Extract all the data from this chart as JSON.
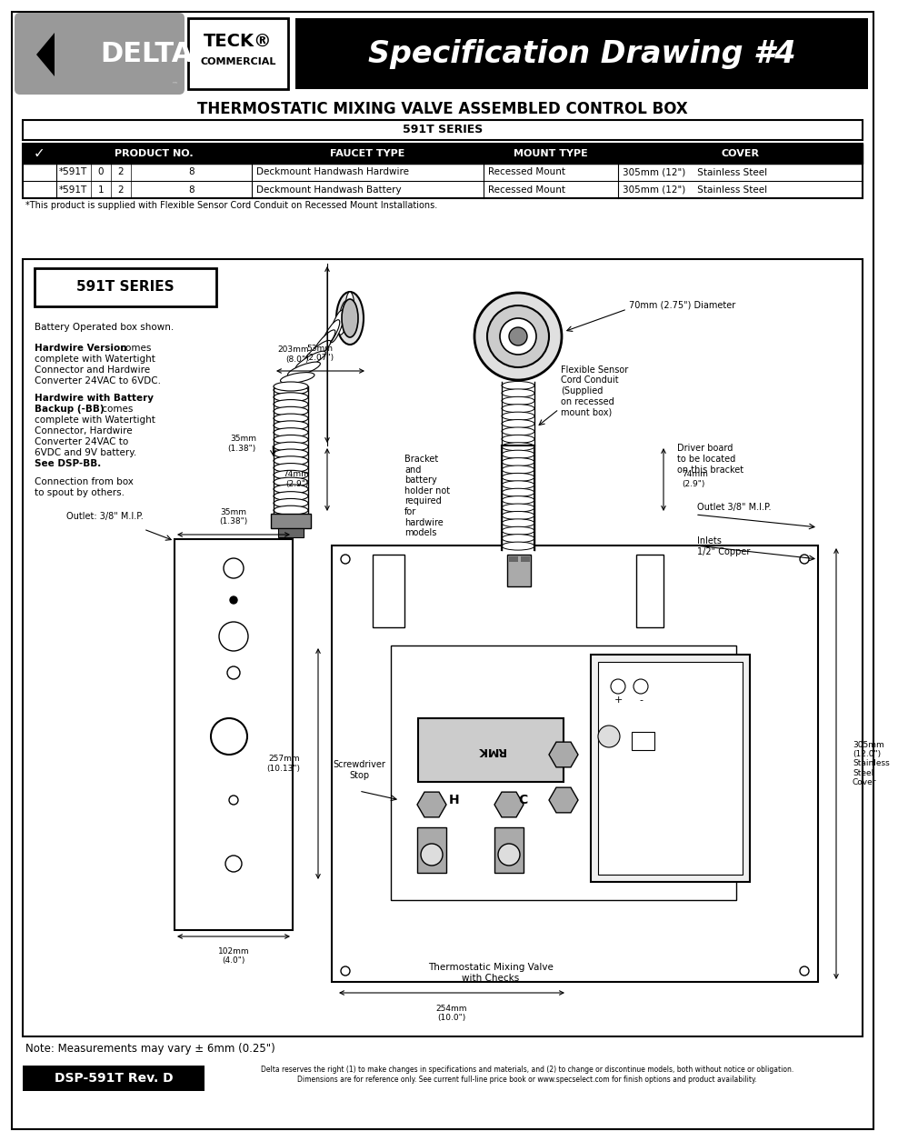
{
  "bg_color": "#ffffff",
  "title_text": "THERMOSTATIC MIXING VALVE ASSEMBLED CONTROL BOX",
  "series_label": "591T SERIES",
  "spec_drawing_title": "Specification Drawing #4",
  "teck_line1": "TECK®",
  "teck_line2": "COMMERCIAL",
  "table_header_check": "✓",
  "table_header_product": "PRODUCT NO.",
  "table_header_faucet": "FAUCET TYPE",
  "table_header_mount": "MOUNT TYPE",
  "table_header_cover": "COVER",
  "row1_product": "*591T",
  "row1_d1": "0",
  "row1_d2": "2",
  "row1_d3": "8",
  "row1_faucet": "Deckmount Handwash Hardwire",
  "row1_mount": "Recessed Mount",
  "row1_cover": "305mm (12\")    Stainless Steel",
  "row2_product": "*591T",
  "row2_d1": "1",
  "row2_d2": "2",
  "row2_d3": "8",
  "row2_faucet": "Deckmount Handwash Battery",
  "row2_mount": "Recessed Mount",
  "row2_cover": "305mm (12\")    Stainless Steel",
  "table_footnote": "*This product is supplied with Flexible Sensor Cord Conduit on Recessed Mount Installations.",
  "series_box_label": "591T SERIES",
  "battery_text": "Battery Operated box shown.",
  "hw_bold1": "Hardwire Version",
  "hw_text1": " comes\ncomplete with Watertight\nConnector and Hardwire\nConverter 24VAC to 6VDC.",
  "bb_bold1": "Hardwire with Battery\nBackup (-BB)",
  "bb_text1": " comes\ncomplete with Watertight\nConnector, Hardwire\nConverter 24VAC to\n6VDC and 9V battery.",
  "bb_bold2": "See DSP-BB.",
  "connection_text": "Connection from box\nto spout by others.",
  "dim_53mm": "53mm\n(2.07\")",
  "dim_35mm": "35mm\n(1.38\")",
  "dim_203mm": "203mm\n(8.0\")",
  "dim_74mm_left": "74mm\n(2.9\")",
  "dim_70mm": "70mm (2.75\") Diameter",
  "dim_257mm": "257mm\n(10.13\")",
  "dim_74mm_right": "74mm\n(2.9\")",
  "dim_305mm": "305mm\n(12.0\")\nStainless\nSteel\nCover",
  "dim_102mm": "102mm\n(4.0\")",
  "dim_254mm": "254mm\n(10.0\")",
  "label_outlet_left": "Outlet: 3/8\" M.I.P.",
  "label_bracket": "Bracket\nand\nbattery\nholder not\nrequired\nfor\nhardwire\nmodels",
  "label_flexible": "Flexible Sensor\nCord Conduit\n(Supplied\non recessed\nmount box)",
  "label_driver": "Driver board\nto be located\non this bracket",
  "label_outlet_right": "Outlet 3/8\" M.I.P.",
  "label_inlets": "Inlets\n1/2\" Copper",
  "label_screwdriver": "Screwdriver\nStop",
  "label_mixing_valve": "Thermostatic Mixing Valve\nwith Checks",
  "note_text": "Note: Measurements may vary ± 6mm (0.25\")",
  "footer_doc": "DSP-591T Rev. D",
  "footer_disclaimer": "Delta reserves the right (1) to make changes in specifications and materials, and (2) to change or discontinue models, both without notice or obligation.\nDimensions are for reference only. See current full-line price book or www.specselect.com for finish options and product availability."
}
